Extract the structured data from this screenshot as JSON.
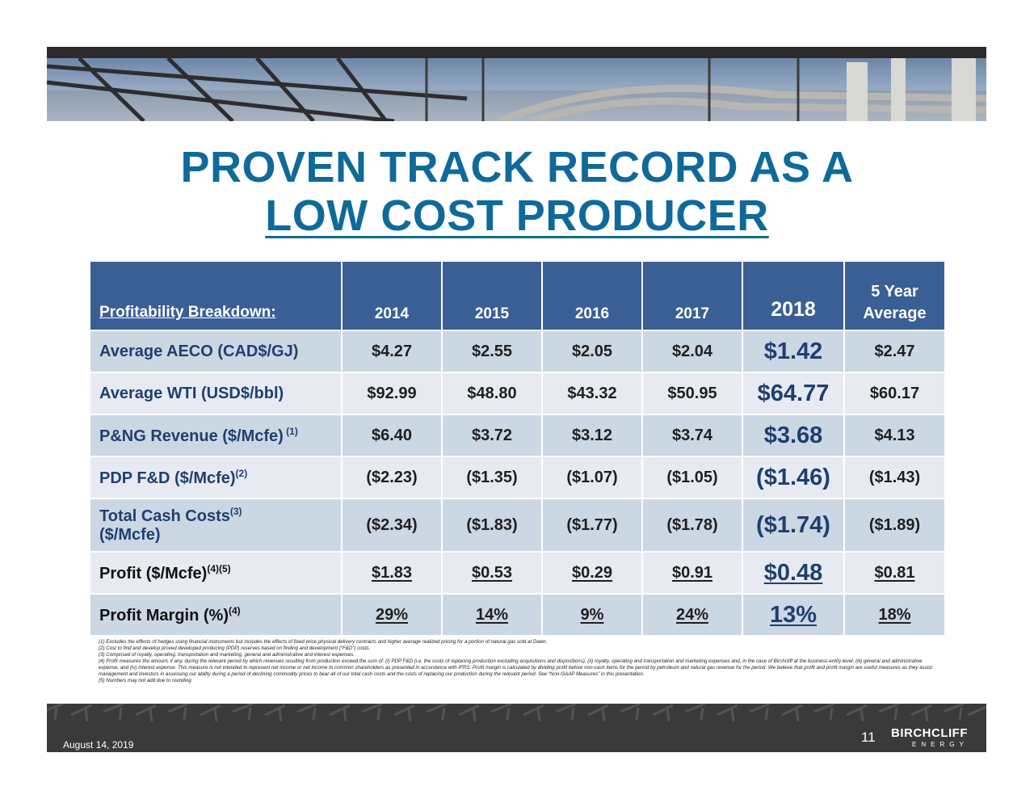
{
  "title": {
    "line1": "PROVEN TRACK RECORD AS A",
    "line2": "LOW COST PRODUCER"
  },
  "table": {
    "header_label": "Profitability Breakdown:",
    "years": [
      "2014",
      "2015",
      "2016",
      "2017",
      "2018"
    ],
    "avg_line1": "5 Year",
    "avg_line2": "Average",
    "rows": [
      {
        "label": "Average AECO (CAD$/GJ)",
        "sup": "",
        "values": [
          "$4.27",
          "$2.55",
          "$2.05",
          "$2.04",
          "$1.42",
          "$2.47"
        ]
      },
      {
        "label": "Average WTI (USD$/bbl)",
        "sup": "",
        "values": [
          "$92.99",
          "$48.80",
          "$43.32",
          "$50.95",
          "$64.77",
          "$60.17"
        ]
      },
      {
        "label": "P&NG Revenue ($/Mcfe)",
        "sup": " (1)",
        "values": [
          "$6.40",
          "$3.72",
          "$3.12",
          "$3.74",
          "$3.68",
          "$4.13"
        ]
      },
      {
        "label": "PDP F&D ($/Mcfe)",
        "sup": "(2)",
        "values": [
          "($2.23)",
          "($1.35)",
          "($1.07)",
          "($1.05)",
          "($1.46)",
          "($1.43)"
        ]
      },
      {
        "label": "Total Cash Costs",
        "sup": "(3)",
        "label2": "($/Mcfe)",
        "values": [
          "($2.34)",
          "($1.83)",
          "($1.77)",
          "($1.78)",
          "($1.74)",
          "($1.89)"
        ]
      },
      {
        "label": "Profit ($/Mcfe)",
        "sup": "(4)(5)",
        "values": [
          "$1.83",
          "$0.53",
          "$0.29",
          "$0.91",
          "$0.48",
          "$0.81"
        ]
      },
      {
        "label": "Profit Margin (%)",
        "sup": "(4)",
        "values": [
          "29%",
          "14%",
          "9%",
          "24%",
          "13%",
          "18%"
        ]
      }
    ]
  },
  "footnotes": [
    "(1) Excludes the effects of hedges using financial instruments but includes the effects of fixed price physical delivery contracts and higher average realized pricing for a portion of natural gas sold at Dawn.",
    "(2) Cost to find and develop proved developed producing (PDP) reserves based on finding and development (“F&D”) costs.",
    "(3) Comprised of royalty, operating, transportation and marketing, general and administrative and interest expenses.",
    "(4) Profit measures the amount, if any, during the relevant period by which revenues resulting from production exceed the sum of: (i) PDP F&D (i.e. the costs of replacing production excluding acquisitions and dispositions), (ii) royalty, operating and transportation and marketing expenses and, in the case of Birchcliff at the business-entity level, (iii) general and administrative expense, and (iv) interest expense. This measure is not intended to represent net income or net income to common shareholders as presented in accordance with IFRS. Profit margin is calculated by dividing profit before non-cash items for the period by petroleum and natural gas revenue for the period. We believe that profit and profit margin are useful measures as they assist management and investors in assessing our ability during a period of declining commodity prices to bear all of our total cash costs and the costs of replacing our production during the relevant period. See “Non-GAAP Measures” in this presentation.",
    "(5) Numbers may not add due to rounding"
  ],
  "footer": {
    "date": "August 14, 2019",
    "page": "11",
    "logo_line1": "BIRCHCLIFF",
    "logo_line2": "ENERGY"
  },
  "colors": {
    "title": "#0f6a9a",
    "header_bg": "#3a5f94",
    "row_dark": "#ccd7e4",
    "row_light": "#e7ebf1",
    "label_text": "#1f3f70"
  }
}
